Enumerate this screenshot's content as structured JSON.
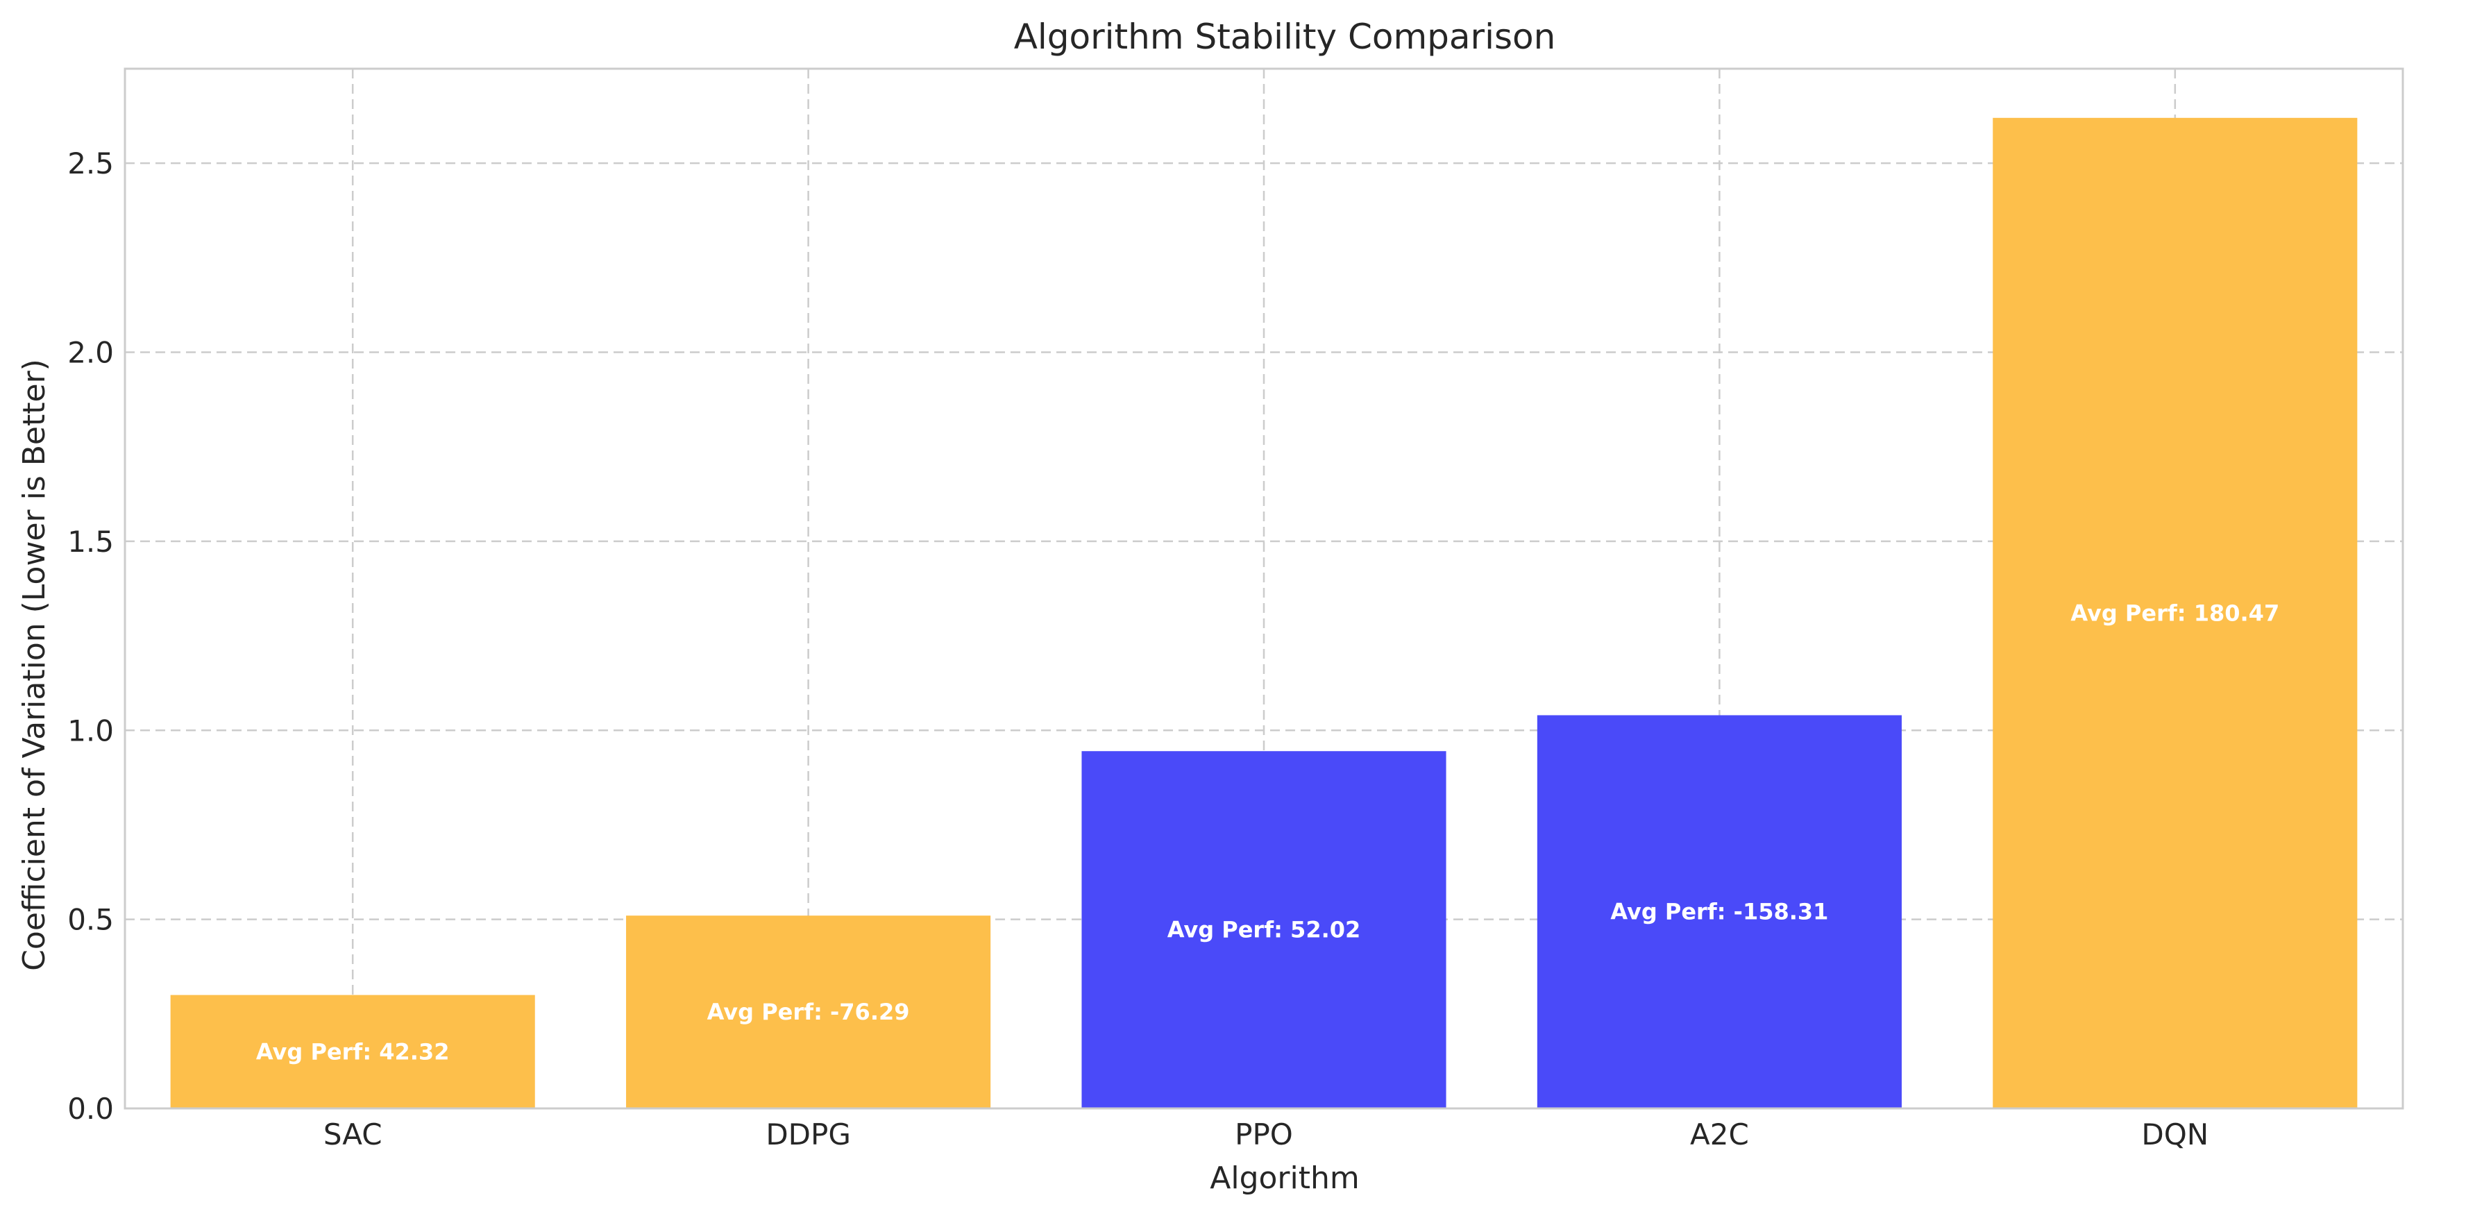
{
  "chart_data": {
    "type": "bar",
    "title": "Algorithm Stability Comparison",
    "xlabel": "Algorithm",
    "ylabel": "Coefficient of Variation (Lower is Better)",
    "categories": [
      "SAC",
      "DDPG",
      "PPO",
      "A2C",
      "DQN"
    ],
    "values": [
      0.3,
      0.51,
      0.945,
      1.04,
      2.62
    ],
    "bar_labels": [
      "Avg Perf: 42.32",
      "Avg Perf: -76.29",
      "Avg Perf: 52.02",
      "Avg Perf: -158.31",
      "Avg Perf: 180.47"
    ],
    "bar_colors": [
      "#fdbf4b",
      "#fdbf4b",
      "#4a4af9",
      "#4a4af9",
      "#fdbf4b"
    ],
    "ylim": [
      0,
      2.75
    ],
    "yticks": [
      0.0,
      0.5,
      1.0,
      1.5,
      2.0,
      2.5
    ],
    "ytick_labels": [
      "0.0",
      "0.5",
      "1.0",
      "1.5",
      "2.0",
      "2.5"
    ],
    "grid": true,
    "legend": null
  }
}
